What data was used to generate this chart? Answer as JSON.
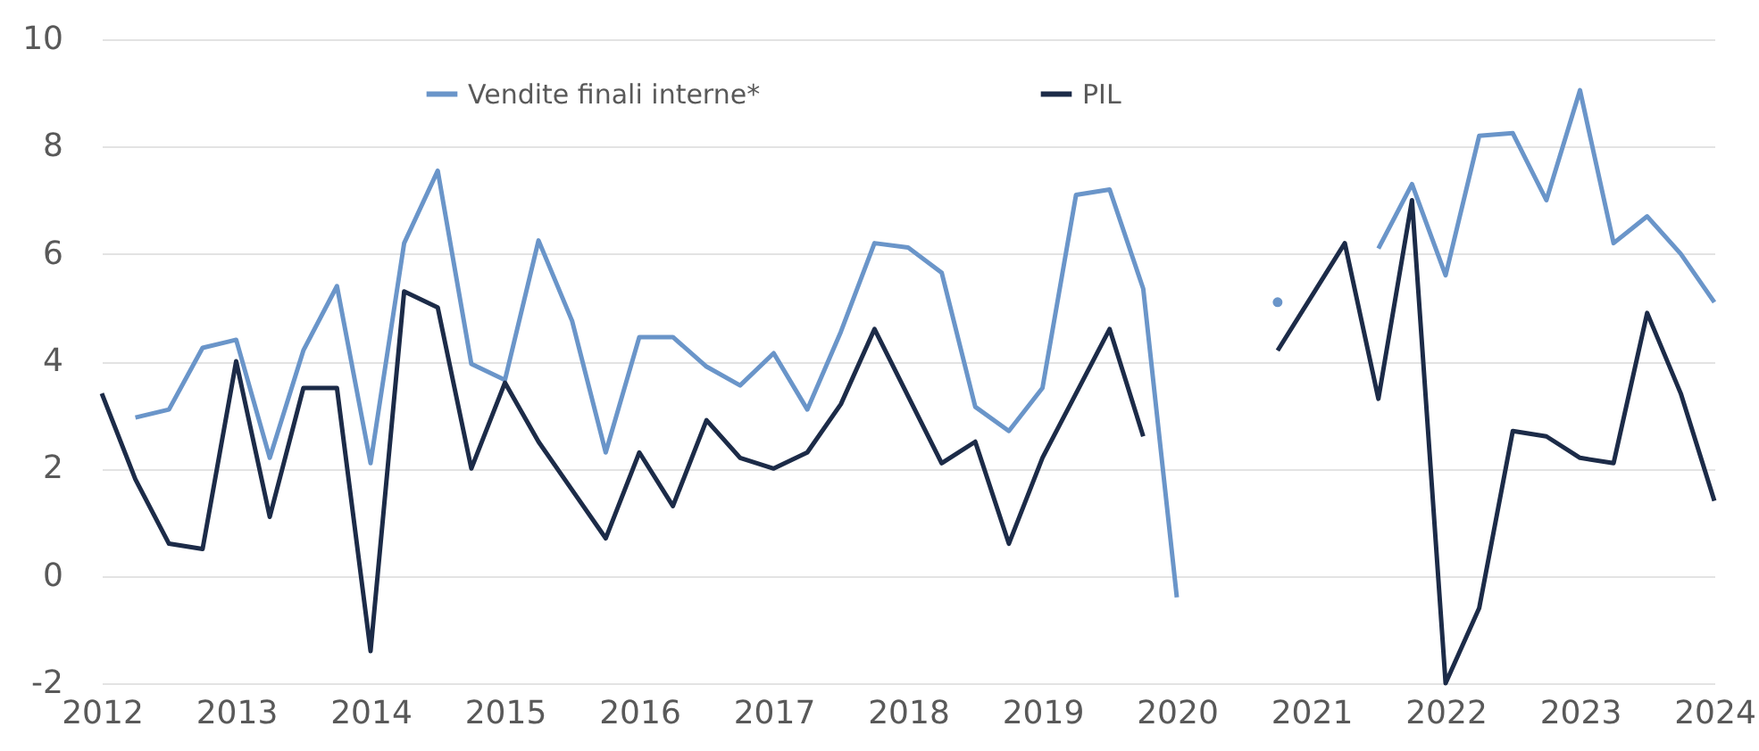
{
  "chart_data": {
    "type": "line",
    "x": [
      2012,
      2012.25,
      2012.5,
      2012.75,
      2013,
      2013.25,
      2013.5,
      2013.75,
      2014,
      2014.25,
      2014.5,
      2014.75,
      2015,
      2015.25,
      2015.5,
      2015.75,
      2016,
      2016.25,
      2016.5,
      2016.75,
      2017,
      2017.25,
      2017.5,
      2017.75,
      2018,
      2018.25,
      2018.5,
      2018.75,
      2019,
      2019.25,
      2019.5,
      2019.75,
      2020,
      2020.25,
      2020.5,
      2020.75,
      2021,
      2021.25,
      2021.5,
      2021.75,
      2022,
      2022.25,
      2022.5,
      2022.75,
      2023,
      2023.25,
      2023.5,
      2023.75,
      2024
    ],
    "series": [
      {
        "name": "Vendite finali interne*",
        "color": "#6a95c9",
        "values": [
          null,
          2.95,
          3.1,
          4.25,
          4.4,
          2.2,
          4.2,
          5.4,
          2.1,
          6.2,
          7.55,
          3.95,
          3.65,
          6.25,
          4.75,
          2.3,
          4.45,
          4.45,
          3.9,
          3.55,
          4.15,
          3.1,
          4.55,
          6.2,
          6.12,
          5.65,
          3.15,
          2.7,
          3.5,
          7.1,
          7.2,
          5.35,
          -0.4,
          null,
          null,
          5.1,
          null,
          null,
          6.1,
          7.3,
          5.6,
          8.2,
          8.25,
          7.0,
          9.05,
          6.2,
          6.7,
          6.0,
          5.1
        ]
      },
      {
        "name": "PIL",
        "color": "#1c2b48",
        "values": [
          3.4,
          1.8,
          0.6,
          0.5,
          4.0,
          1.1,
          3.5,
          3.5,
          -1.4,
          5.3,
          5.0,
          2.0,
          3.6,
          2.5,
          1.6,
          0.7,
          2.3,
          1.3,
          2.9,
          2.2,
          2.0,
          2.3,
          3.2,
          4.6,
          3.35,
          2.1,
          2.5,
          0.6,
          2.2,
          3.4,
          4.6,
          2.6,
          null,
          null,
          null,
          4.2,
          5.2,
          6.2,
          3.3,
          7.0,
          -2.0,
          -0.6,
          2.7,
          2.6,
          2.2,
          2.1,
          4.9,
          3.4,
          1.4
        ]
      }
    ],
    "xlim": [
      2012,
      2024
    ],
    "xticks": [
      2012,
      2013,
      2014,
      2015,
      2016,
      2017,
      2018,
      2019,
      2020,
      2021,
      2022,
      2023,
      2024
    ],
    "ylim": [
      -2,
      10
    ],
    "yticks": [
      -2,
      0,
      2,
      4,
      6,
      8,
      10
    ],
    "grid": "y",
    "legend": "top"
  }
}
